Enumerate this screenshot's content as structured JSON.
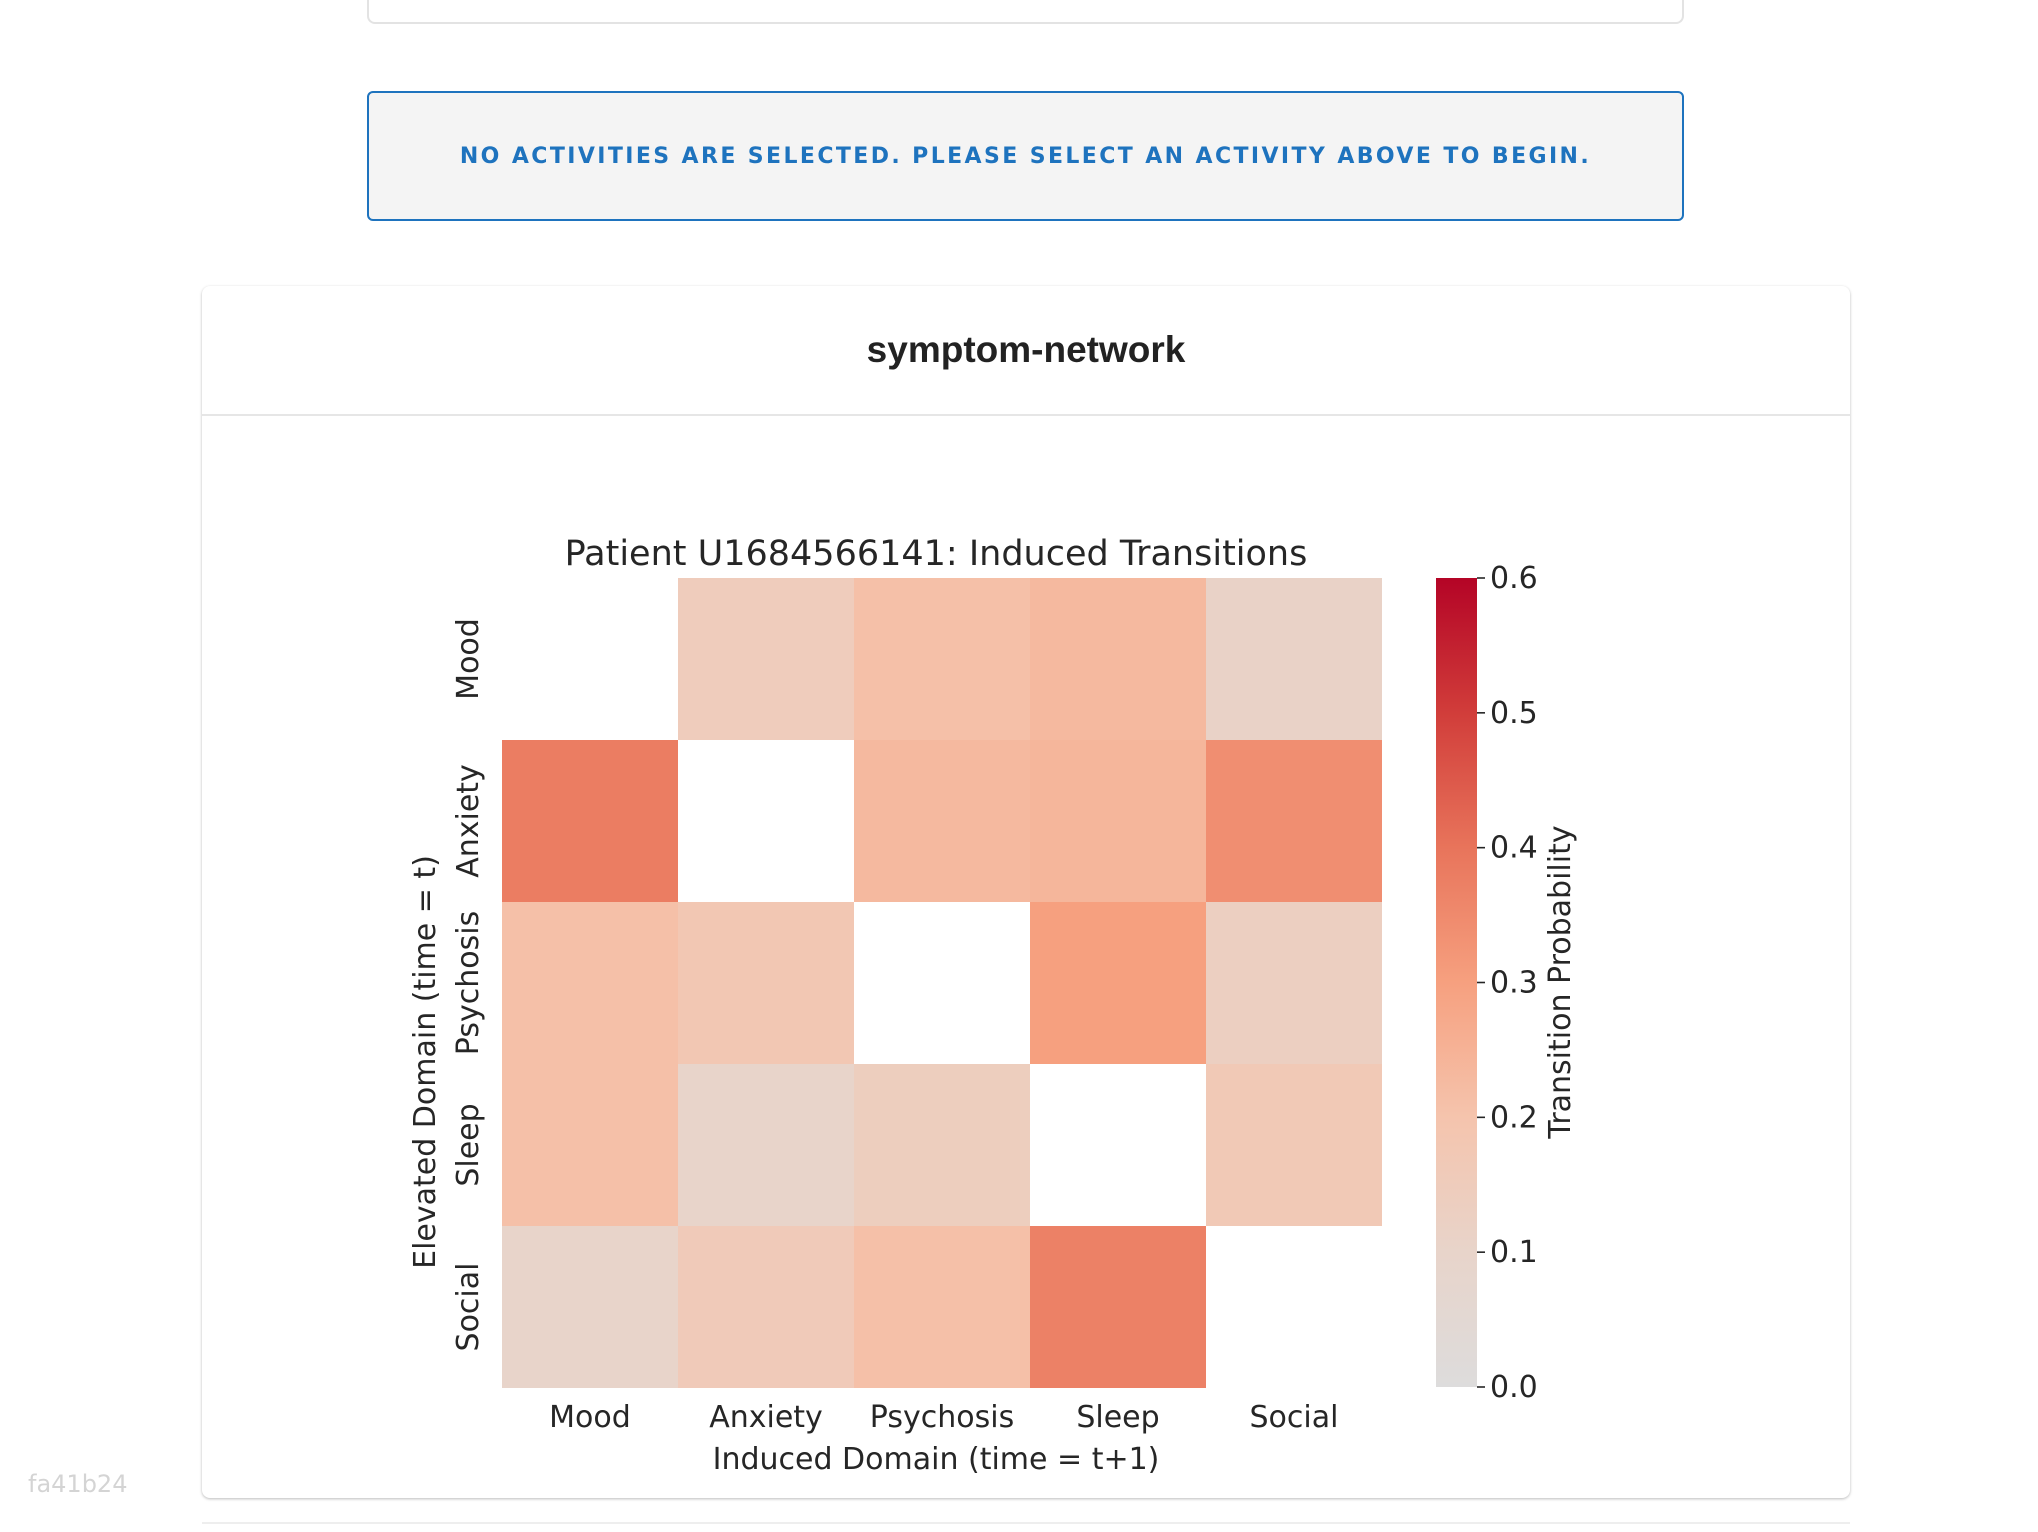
{
  "notice": {
    "text": "NO ACTIVITIES ARE SELECTED. PLEASE SELECT AN ACTIVITY ABOVE TO BEGIN."
  },
  "card": {
    "title": "symptom-network"
  },
  "watermark": "fa41b24",
  "colors": {
    "accent": "#1e73be",
    "notice_background": "#f4f4f4",
    "colormap": [
      "#dddcdc",
      "#e8d4ca",
      "#f5c4ad",
      "#f6a07f",
      "#e8745b",
      "#d13d3a",
      "#b40426"
    ]
  },
  "chart_data": {
    "type": "heatmap",
    "title": "Patient U1684566141: Induced Transitions",
    "xlabel": "Induced Domain (time = t+1)",
    "ylabel": "Elevated Domain (time = t)",
    "x_categories": [
      "Mood",
      "Anxiety",
      "Psychosis",
      "Sleep",
      "Social"
    ],
    "y_categories": [
      "Mood",
      "Anxiety",
      "Psychosis",
      "Sleep",
      "Social"
    ],
    "values": [
      [
        null,
        0.15,
        0.21,
        0.23,
        0.11
      ],
      [
        0.38,
        null,
        0.23,
        0.24,
        0.34
      ],
      [
        0.21,
        0.18,
        null,
        0.3,
        0.13
      ],
      [
        0.21,
        0.1,
        0.14,
        null,
        0.17
      ],
      [
        0.1,
        0.16,
        0.21,
        0.37,
        null
      ]
    ],
    "colorbar": {
      "label": "Transition Probability",
      "range": [
        0.0,
        0.6
      ],
      "ticks": [
        "0.0",
        "0.1",
        "0.2",
        "0.3",
        "0.4",
        "0.5",
        "0.6"
      ]
    },
    "grid": false
  }
}
